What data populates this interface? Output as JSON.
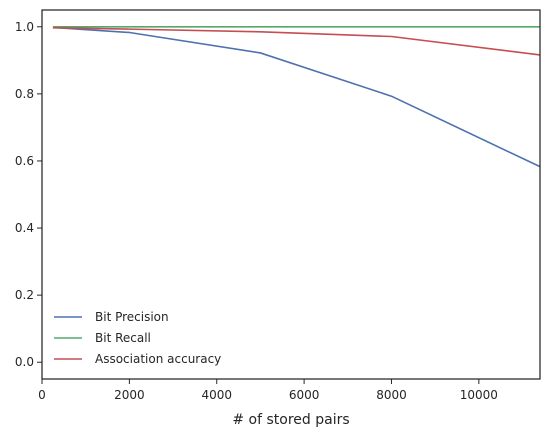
{
  "chart_data": {
    "type": "line",
    "title": "",
    "xlabel": "# of stored pairs",
    "ylabel": "",
    "xlim": [
      0,
      11400
    ],
    "ylim": [
      -0.05,
      1.05
    ],
    "xticks": [
      0,
      2000,
      4000,
      6000,
      8000,
      10000
    ],
    "xtick_labels": [
      "0",
      "2000",
      "4000",
      "6000",
      "8000",
      "10000"
    ],
    "yticks": [
      0.0,
      0.2,
      0.4,
      0.6,
      0.8,
      1.0
    ],
    "ytick_labels": [
      "0.0",
      "0.2",
      "0.4",
      "0.6",
      "0.8",
      "1.0"
    ],
    "grid": false,
    "legend_position": "bottom-left",
    "x": [
      250,
      2000,
      5000,
      8000,
      11400
    ],
    "series": [
      {
        "name": "Bit Precision",
        "color": "#4c72b0",
        "values": [
          0.998,
          0.983,
          0.922,
          0.793,
          0.583
        ]
      },
      {
        "name": "Bit Recall",
        "color": "#55a868",
        "values": [
          1.0,
          1.0,
          1.0,
          1.0,
          1.0
        ]
      },
      {
        "name": "Association accuracy",
        "color": "#c44e52",
        "values": [
          0.997,
          0.993,
          0.985,
          0.971,
          0.916
        ]
      }
    ]
  }
}
